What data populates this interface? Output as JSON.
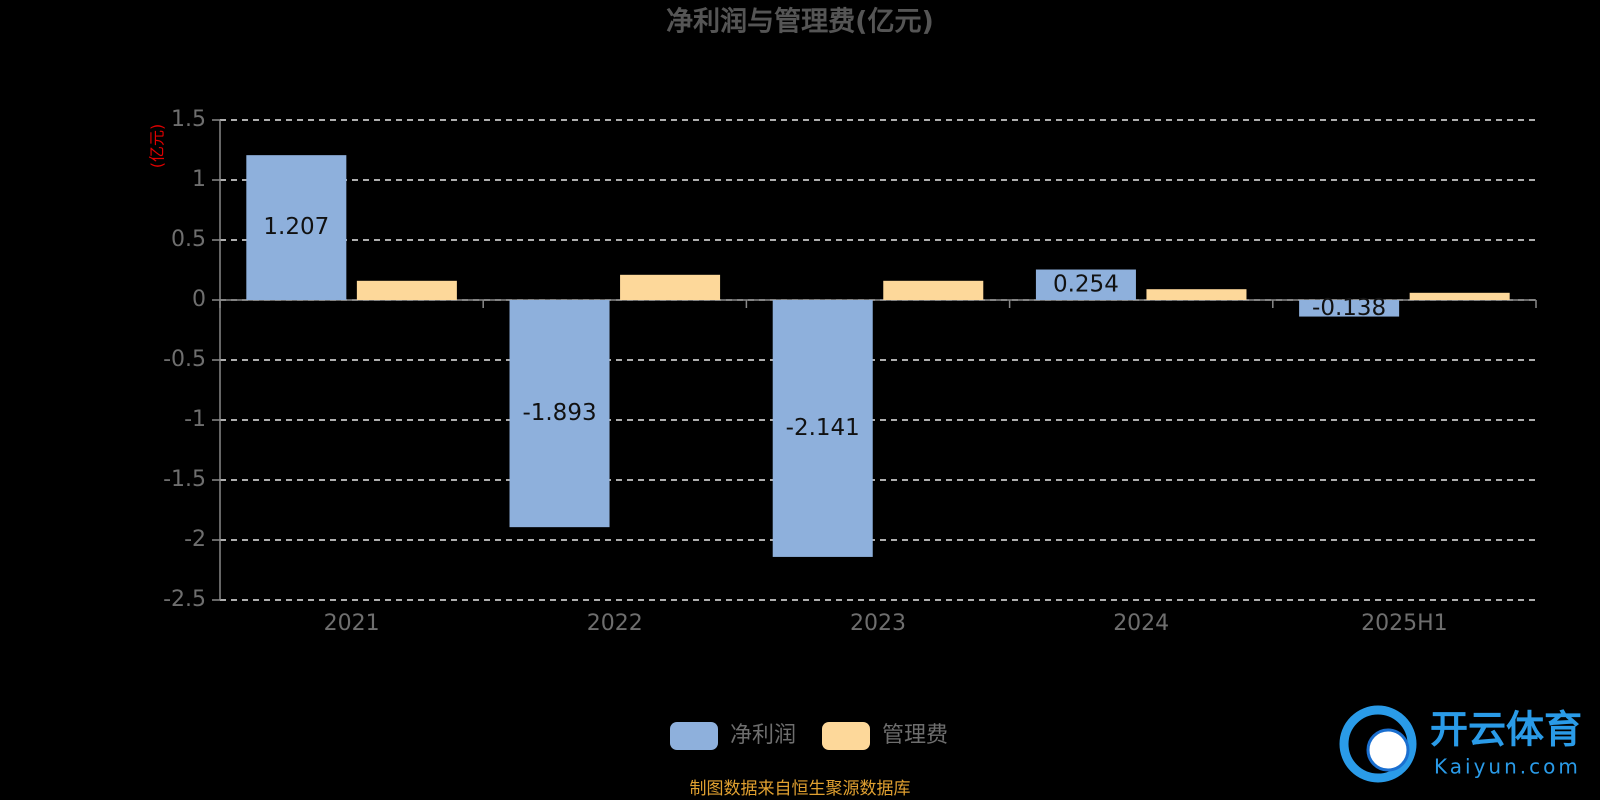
{
  "chart_data": {
    "type": "bar",
    "title": "净利润与管理费(亿元)",
    "y_label": "(亿元)",
    "categories": [
      "2021",
      "2022",
      "2023",
      "2024",
      "2025H1"
    ],
    "series": [
      {
        "name": "净利润",
        "color": "#8eb0dc",
        "values": [
          1.207,
          -1.893,
          -2.141,
          0.254,
          -0.138
        ],
        "labels": true
      },
      {
        "name": "管理费",
        "color": "#fdd89a",
        "values": [
          0.16,
          0.21,
          0.16,
          0.09,
          0.06
        ],
        "labels": false
      }
    ],
    "ylim": [
      -2.5,
      1.5
    ],
    "yticks": [
      -2.5,
      -2,
      -1.5,
      -1,
      -0.5,
      0,
      0.5,
      1,
      1.5
    ],
    "grid": true,
    "source": "制图数据来自恒生聚源数据库"
  },
  "watermark": {
    "brand": "开云体育",
    "site": "Kaiyun.com"
  }
}
